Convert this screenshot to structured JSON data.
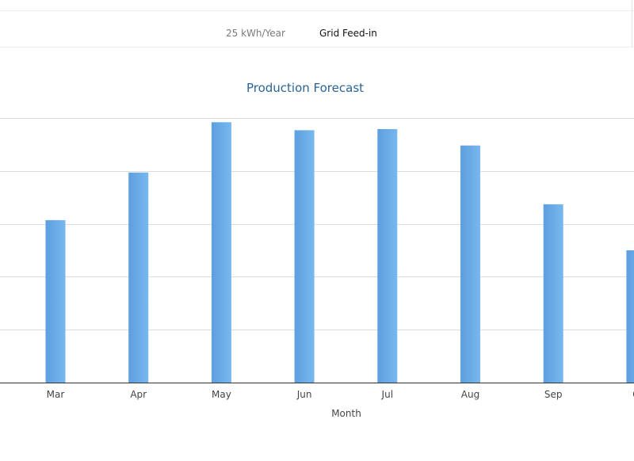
{
  "header": {
    "value": "25 kWh/Year",
    "label": "Grid Feed-in"
  },
  "chart_data": {
    "type": "bar",
    "title": "Production Forecast",
    "xlabel": "Month",
    "ylabel": "",
    "categories": [
      "Mar",
      "Apr",
      "May",
      "Jun",
      "Jul",
      "Aug",
      "Sep",
      "O"
    ],
    "values": [
      3.07,
      3.97,
      4.92,
      4.77,
      4.79,
      4.48,
      3.37,
      2.5
    ],
    "ylim": [
      0,
      5
    ],
    "grid": true,
    "colors": {
      "bar": "#6aaeea",
      "bar_dark": "#5a9edc",
      "grid": "#dddddd",
      "axis": "#333333",
      "title": "#2a6496"
    }
  }
}
